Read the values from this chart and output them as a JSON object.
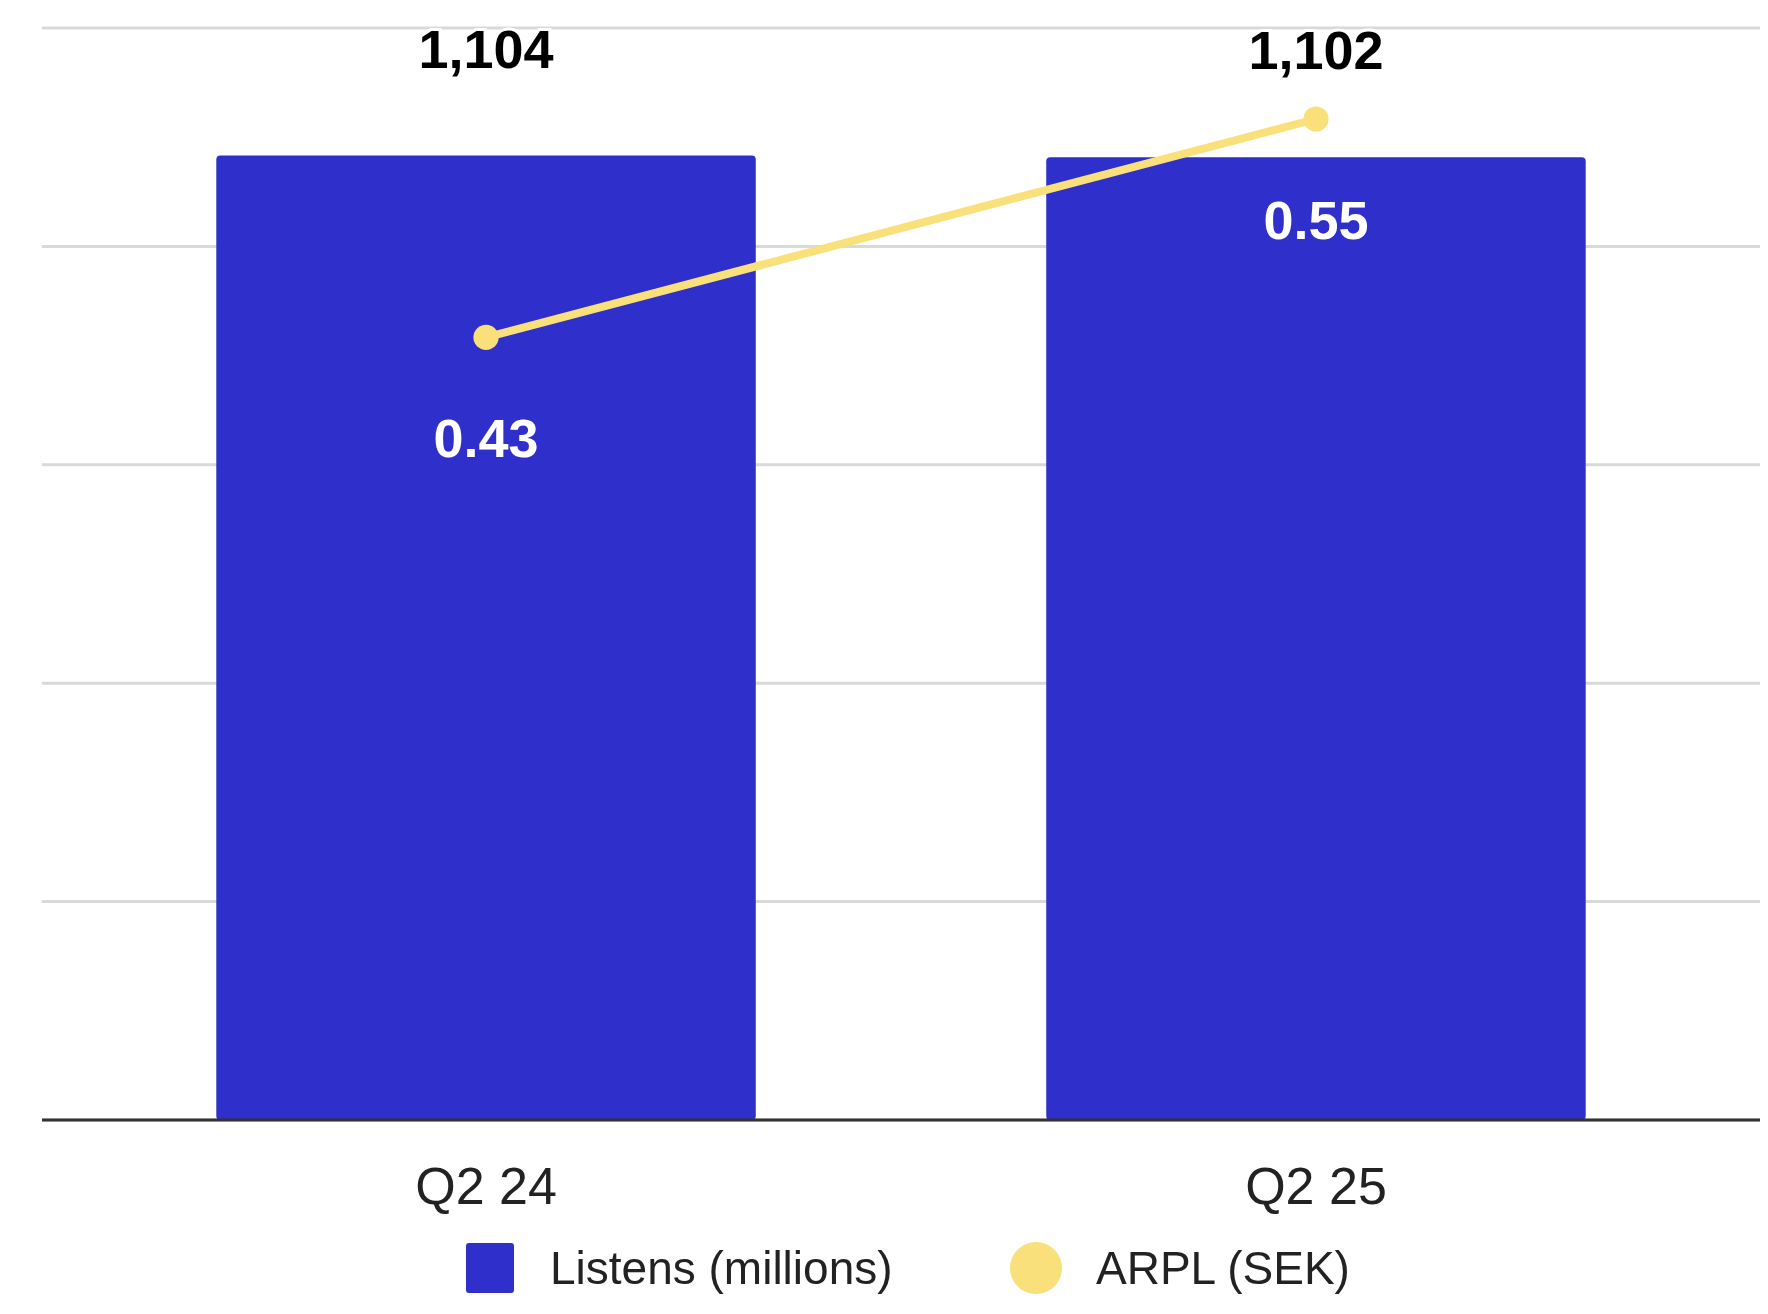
{
  "chart_data": {
    "type": "bar",
    "categories": [
      "Q2 24",
      "Q2 25"
    ],
    "series": [
      {
        "name": "Listens (millions)",
        "color": "#2f2fcb",
        "values": [
          1104,
          1102
        ],
        "value_labels": [
          "1,104",
          "1,102"
        ]
      },
      {
        "name": "ARPL (SEK)",
        "type": "line",
        "axis": "y2",
        "color": "#f9e07a",
        "values": [
          0.43,
          0.55
        ],
        "value_labels": [
          "0.43",
          "0.55"
        ],
        "marker": "circle"
      }
    ],
    "ylim": [
      0,
      1250
    ],
    "yticks": [
      {
        "value": 0,
        "label": null
      },
      {
        "value": 250,
        "label": null
      },
      {
        "value": 500,
        "label": null
      },
      {
        "value": 750,
        "label": null
      },
      {
        "value": 1000,
        "label": null
      },
      {
        "value": 1250,
        "label": null
      }
    ],
    "y2lim": [
      0,
      0.6
    ],
    "tick_labels": "x",
    "grid": "y",
    "legend": "bottom"
  }
}
